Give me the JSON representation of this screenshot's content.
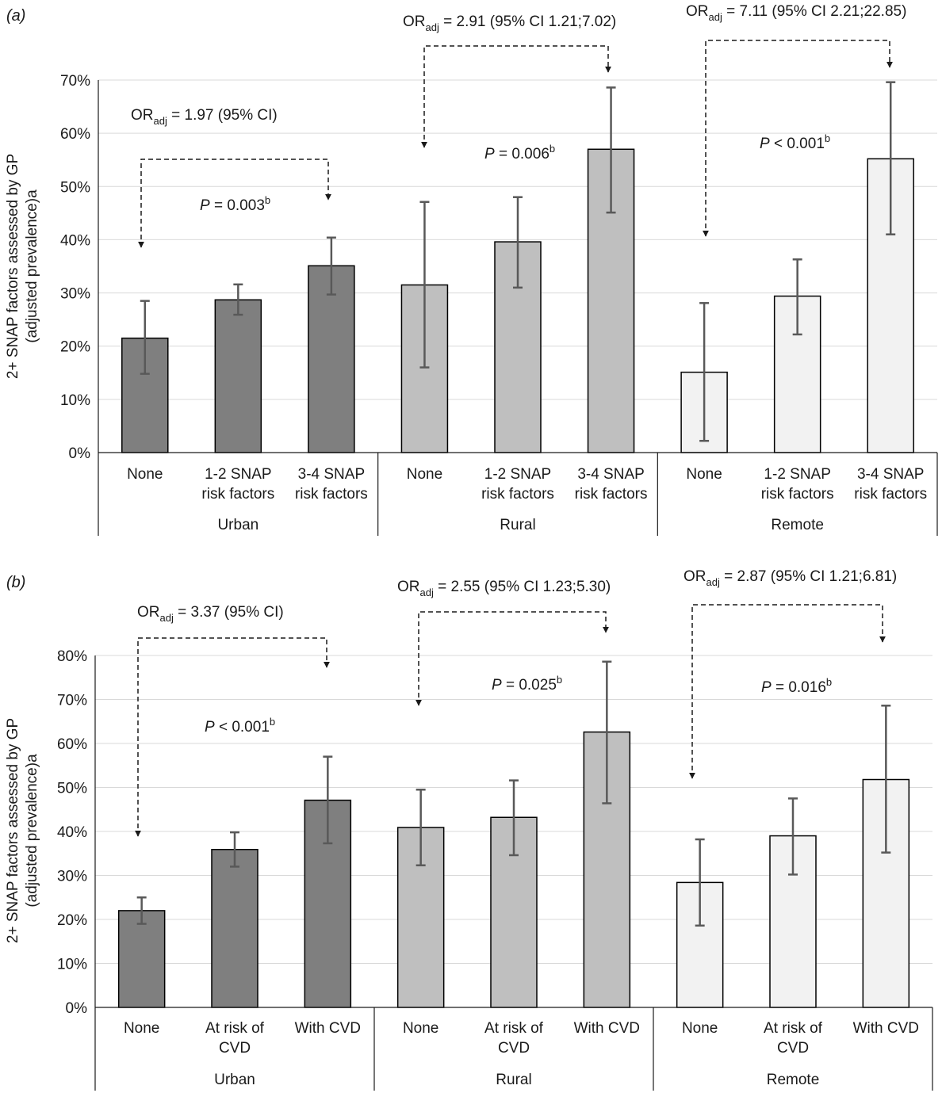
{
  "chart_data": [
    {
      "type": "bar",
      "panel_label": "(a)",
      "ylabel_line1": "2+ SNAP factors assessed by GP",
      "ylabel_line2": "(adjusted prevalence)a",
      "ylim": [
        0,
        0.7
      ],
      "yticks": [
        0,
        0.1,
        0.2,
        0.3,
        0.4,
        0.5,
        0.6,
        0.7
      ],
      "ytick_labels": [
        "0%",
        "10%",
        "20%",
        "30%",
        "40%",
        "50%",
        "60%",
        "70%"
      ],
      "grid": true,
      "groups": [
        {
          "name": "Urban",
          "color": "#7f7f7f",
          "bars": [
            {
              "label": [
                "None"
              ],
              "value": 0.215,
              "ci": [
                0.148,
                0.285
              ]
            },
            {
              "label": [
                "1-2 SNAP",
                "risk factors"
              ],
              "value": 0.287,
              "ci": [
                0.259,
                0.316
              ]
            },
            {
              "label": [
                "3-4 SNAP",
                "risk factors"
              ],
              "value": 0.351,
              "ci": [
                0.297,
                0.404
              ]
            }
          ],
          "annotations": {
            "or_value": " = 1.97 (95% CI)",
            "p_value": " = 0.003"
          }
        },
        {
          "name": "Rural",
          "color": "#bfbfbf",
          "bars": [
            {
              "label": [
                "None"
              ],
              "value": 0.315,
              "ci": [
                0.16,
                0.471
              ]
            },
            {
              "label": [
                "1-2 SNAP",
                "risk factors"
              ],
              "value": 0.396,
              "ci": [
                0.31,
                0.48
              ]
            },
            {
              "label": [
                "3-4 SNAP",
                "risk factors"
              ],
              "value": 0.57,
              "ci": [
                0.451,
                0.686
              ]
            }
          ],
          "annotations": {
            "or_value": " = 2.91 (95% CI 1.21;7.02)",
            "p_value": " = 0.006"
          }
        },
        {
          "name": "Remote",
          "color": "#f2f2f2",
          "bars": [
            {
              "label": [
                "None"
              ],
              "value": 0.151,
              "ci": [
                0.022,
                0.281
              ]
            },
            {
              "label": [
                "1-2 SNAP",
                "risk factors"
              ],
              "value": 0.294,
              "ci": [
                0.222,
                0.363
              ]
            },
            {
              "label": [
                "3-4 SNAP",
                "risk factors"
              ],
              "value": 0.552,
              "ci": [
                0.41,
                0.696
              ]
            }
          ],
          "annotations": {
            "or_value": " = 7.11 (95% CI 2.21;22.85)",
            "p_value": " < 0.001"
          }
        }
      ]
    },
    {
      "type": "bar",
      "panel_label": "(b)",
      "ylabel_line1": "2+ SNAP factors assessed by GP",
      "ylabel_line2": "(adjusted prevalence)a",
      "ylim": [
        0,
        0.8
      ],
      "yticks": [
        0,
        0.1,
        0.2,
        0.3,
        0.4,
        0.5,
        0.6,
        0.7,
        0.8
      ],
      "ytick_labels": [
        "0%",
        "10%",
        "20%",
        "30%",
        "40%",
        "50%",
        "60%",
        "70%",
        "80%"
      ],
      "grid": true,
      "groups": [
        {
          "name": "Urban",
          "color": "#7f7f7f",
          "bars": [
            {
              "label": [
                "None"
              ],
              "value": 0.22,
              "ci": [
                0.19,
                0.25
              ]
            },
            {
              "label": [
                "At risk of",
                "CVD"
              ],
              "value": 0.359,
              "ci": [
                0.32,
                0.398
              ]
            },
            {
              "label": [
                "With CVD"
              ],
              "value": 0.471,
              "ci": [
                0.373,
                0.57
              ]
            }
          ],
          "annotations": {
            "or_value": " = 3.37 (95% CI)",
            "p_value": " < 0.001"
          }
        },
        {
          "name": "Rural",
          "color": "#bfbfbf",
          "bars": [
            {
              "label": [
                "None"
              ],
              "value": 0.409,
              "ci": [
                0.323,
                0.495
              ]
            },
            {
              "label": [
                "At risk of",
                "CVD"
              ],
              "value": 0.432,
              "ci": [
                0.346,
                0.516
              ]
            },
            {
              "label": [
                "With CVD"
              ],
              "value": 0.626,
              "ci": [
                0.464,
                0.786
              ]
            }
          ],
          "annotations": {
            "or_value": " = 2.55 (95% CI 1.23;5.30)",
            "p_value": " = 0.025"
          }
        },
        {
          "name": "Remote",
          "color": "#f2f2f2",
          "bars": [
            {
              "label": [
                "None"
              ],
              "value": 0.284,
              "ci": [
                0.186,
                0.382
              ]
            },
            {
              "label": [
                "At risk of",
                "CVD"
              ],
              "value": 0.39,
              "ci": [
                0.302,
                0.475
              ]
            },
            {
              "label": [
                "With CVD"
              ],
              "value": 0.518,
              "ci": [
                0.352,
                0.686
              ]
            }
          ],
          "annotations": {
            "or_value": " = 2.87 (95% CI 1.21;6.81)",
            "p_value": " = 0.016"
          }
        }
      ]
    }
  ],
  "labels": {
    "or_prefix": "OR",
    "or_subscript": "adj",
    "p_prefix": "P",
    "footnote_b": "b"
  },
  "colors": {
    "axis": "#1a1a1a",
    "grid": "#d9d9d9",
    "error_bar": "#595959",
    "bar_edge": "#000000"
  }
}
